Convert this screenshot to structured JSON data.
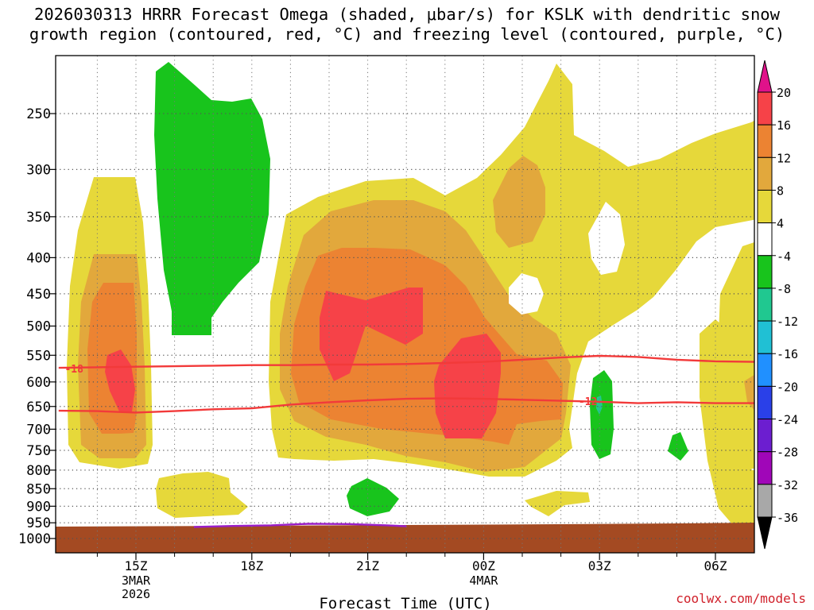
{
  "chart_data": {
    "type": "heatmap",
    "title_line1": "2026030313 HRRR Forecast Omega (shaded, μbar/s) for KSLK with dendritic snow",
    "title_line2": "growth region (contoured, red, °C) and freezing level (contoured, purple, °C)",
    "xlabel": "Forecast Time (UTC)",
    "ylabel": "",
    "x_ticks": [
      {
        "label": "15Z",
        "hour": 15,
        "sub": [
          "3MAR",
          "2026"
        ]
      },
      {
        "label": "18Z",
        "hour": 18,
        "sub": []
      },
      {
        "label": "21Z",
        "hour": 21,
        "sub": []
      },
      {
        "label": "00Z",
        "hour": 24,
        "sub": [
          "4MAR"
        ]
      },
      {
        "label": "03Z",
        "hour": 27,
        "sub": []
      },
      {
        "label": "06Z",
        "hour": 30,
        "sub": []
      }
    ],
    "x_range_hours": [
      13,
      31
    ],
    "y_ticks": [
      250,
      300,
      350,
      400,
      450,
      500,
      550,
      600,
      650,
      700,
      750,
      800,
      850,
      900,
      950,
      1000
    ],
    "y_range_hpa": [
      200,
      1040
    ],
    "grid": true,
    "colorbar_labels": [
      "20",
      "16",
      "12",
      "8",
      "4",
      "-4",
      "-8",
      "-12",
      "-16",
      "-20",
      "-24",
      "-28",
      "-32",
      "-36"
    ],
    "colorbar_colors": [
      "#f64248",
      "#ec8332",
      "#e2a83c",
      "#e6d83a",
      "#ffffff",
      "#18c41c",
      "#20c890",
      "#20c0d4",
      "#2090ff",
      "#2a40e8",
      "#6c1ed0",
      "#a006b8",
      "#a8a8a8"
    ],
    "colorbar_top_color": "#e0128a",
    "colorbar_bottom_color": "#000000",
    "omega_fill_colors": {
      "4_8": "#e6d83a",
      "8_12": "#e2a83c",
      "12_16": "#ec8332",
      "16_20": "#f64248",
      "m4_m8": "#18c41c",
      "m8_m12": "#20c890"
    },
    "contours": [
      {
        "name": "dgz-upper",
        "label": "-18",
        "color": "#f23a3a",
        "points": [
          [
            13.0,
            573
          ],
          [
            14.0,
            572
          ],
          [
            15.0,
            571
          ],
          [
            16.0,
            570
          ],
          [
            17.0,
            569
          ],
          [
            18.0,
            568
          ],
          [
            19.0,
            568
          ],
          [
            20.0,
            567
          ],
          [
            21.0,
            567
          ],
          [
            22.0,
            566
          ],
          [
            23.0,
            564
          ],
          [
            24.0,
            562
          ],
          [
            25.0,
            558
          ],
          [
            26.0,
            554
          ],
          [
            27.0,
            551
          ],
          [
            28.0,
            553
          ],
          [
            29.0,
            558
          ],
          [
            30.0,
            561
          ],
          [
            31.0,
            562
          ]
        ]
      },
      {
        "name": "dgz-lower",
        "label": "-12",
        "color": "#f23a3a",
        "points": [
          [
            13.0,
            659
          ],
          [
            14.0,
            660
          ],
          [
            15.0,
            663
          ],
          [
            16.0,
            660
          ],
          [
            17.0,
            656
          ],
          [
            18.0,
            654
          ],
          [
            19.0,
            646
          ],
          [
            20.0,
            641
          ],
          [
            21.0,
            637
          ],
          [
            22.0,
            634
          ],
          [
            23.0,
            633
          ],
          [
            24.0,
            634
          ],
          [
            25.0,
            636
          ],
          [
            26.0,
            638
          ],
          [
            27.0,
            640
          ],
          [
            28.0,
            643
          ],
          [
            29.0,
            641
          ],
          [
            30.0,
            643
          ],
          [
            31.0,
            643
          ]
        ]
      },
      {
        "name": "freezing-level",
        "label": "",
        "color": "#9a1ec8",
        "points": [
          [
            16.5,
            963
          ],
          [
            17.5,
            960
          ],
          [
            18.5,
            958
          ],
          [
            19.5,
            953
          ],
          [
            20.5,
            954
          ],
          [
            21.5,
            958
          ],
          [
            22.0,
            961
          ]
        ]
      }
    ],
    "ground_color": "#a44a22",
    "credit": "coolwx.com/models"
  }
}
